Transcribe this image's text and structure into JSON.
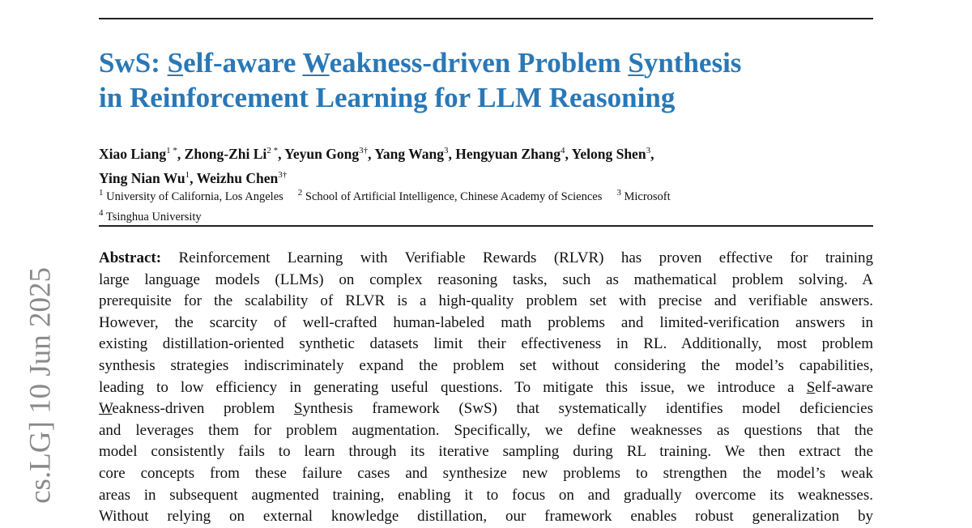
{
  "sidebar_stamp": "cs.LG]  10 Jun 2025",
  "title": {
    "line1": [
      {
        "t": "SwS: "
      },
      {
        "t": "S",
        "u": true
      },
      {
        "t": "elf-aware "
      },
      {
        "t": "W",
        "u": true
      },
      {
        "t": "eakness-driven Problem "
      },
      {
        "t": "S",
        "u": true
      },
      {
        "t": "ynthesis"
      }
    ],
    "line2": "in Reinforcement Learning for LLM Reasoning",
    "color": "#2a78b6"
  },
  "authors": [
    {
      "name": "Xiao Liang",
      "sup": "1 *"
    },
    {
      "name": "Zhong-Zhi Li",
      "sup": "2 *"
    },
    {
      "name": "Yeyun Gong",
      "sup": "3†"
    },
    {
      "name": "Yang Wang",
      "sup": "3"
    },
    {
      "name": "Hengyuan Zhang",
      "sup": "4"
    },
    {
      "name": "Yelong Shen",
      "sup": "3"
    },
    {
      "name": "Ying Nian Wu",
      "sup": "1"
    },
    {
      "name": "Weizhu Chen",
      "sup": "3†"
    }
  ],
  "affiliations": [
    {
      "num": "1",
      "name": "University of California, Los Angeles"
    },
    {
      "num": "2",
      "name": "School of Artificial Intelligence, Chinese Academy of Sciences"
    },
    {
      "num": "3",
      "name": "Microsoft"
    },
    {
      "num": "4",
      "name": "Tsinghua University"
    }
  ],
  "abstract": {
    "label": "Abstract:",
    "lines": [
      [
        {
          "t": " Reinforcement Learning with Verifiable Rewards (RLVR) has proven effective for training"
        }
      ],
      [
        {
          "t": "large language models (LLMs) on complex reasoning tasks, such as mathematical problem solving. A"
        }
      ],
      [
        {
          "t": "prerequisite for the scalability of RLVR is a high-quality problem set with precise and verifiable answers."
        }
      ],
      [
        {
          "t": "However, the scarcity of well-crafted human-labeled math problems and limited-verification answers in"
        }
      ],
      [
        {
          "t": "existing distillation-oriented synthetic datasets limit their effectiveness in RL. Additionally, most problem"
        }
      ],
      [
        {
          "t": "synthesis strategies indiscriminately expand the problem set without considering the model’s capabilities,"
        }
      ],
      [
        {
          "t": "leading to low efficiency in generating useful questions. To mitigate this issue, we introduce a "
        },
        {
          "t": "S",
          "u": true
        },
        {
          "t": "elf-aware"
        }
      ],
      [
        {
          "t": "W",
          "u": true
        },
        {
          "t": "eakness-driven problem "
        },
        {
          "t": "S",
          "u": true
        },
        {
          "t": "ynthesis framework (SwS) that systematically identifies model deficiencies"
        }
      ],
      [
        {
          "t": "and leverages them for problem augmentation. Specifically, we define weaknesses as questions that the"
        }
      ],
      [
        {
          "t": "model consistently fails to learn through its iterative sampling during RL training. We then extract the"
        }
      ],
      [
        {
          "t": "core concepts from these failure cases and synthesize new problems to strengthen the model’s weak"
        }
      ],
      [
        {
          "t": "areas in subsequent augmented training, enabling it to focus on and gradually overcome its weaknesses."
        }
      ],
      [
        {
          "t": "Without relying on external knowledge distillation, our framework enables robust generalization by"
        }
      ]
    ]
  }
}
